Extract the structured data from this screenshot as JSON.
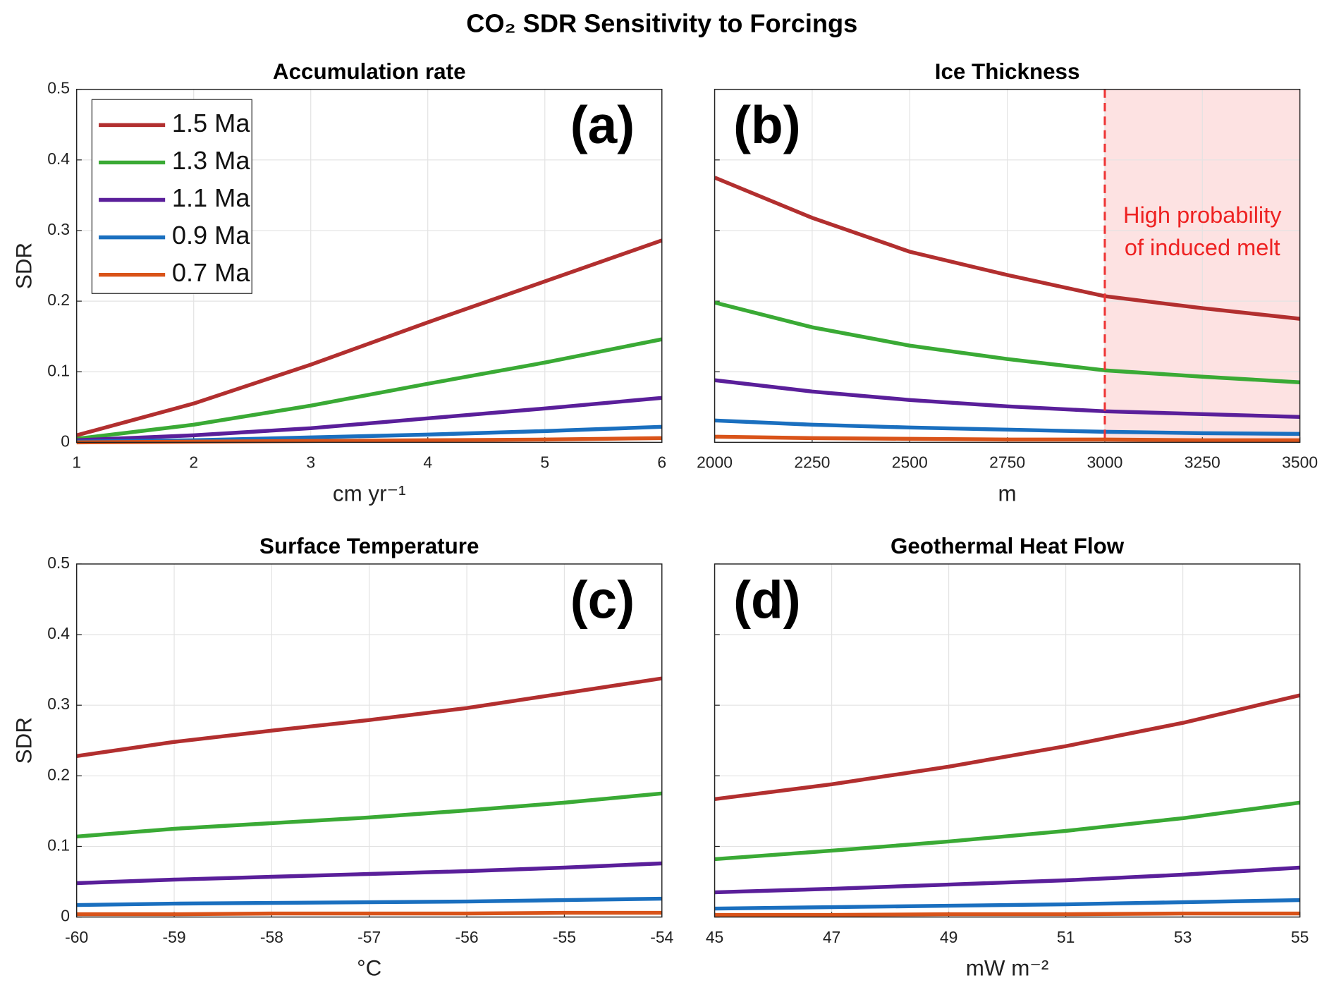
{
  "title": "CO₂ SDR Sensitivity to Forcings",
  "chart_data": [
    {
      "type": "line",
      "title": "Accumulation rate",
      "xlabel": "cm yr⁻¹",
      "ylabel": "SDR",
      "x": [
        1,
        2,
        3,
        4,
        5,
        6
      ],
      "xlim": [
        1,
        6
      ],
      "xticks": [
        1,
        2,
        3,
        4,
        5,
        6
      ],
      "ylim": [
        0,
        0.5
      ],
      "yticks": [
        0,
        0.1,
        0.2,
        0.3,
        0.4,
        0.5
      ],
      "show_ytick_labels": true,
      "grid": true,
      "panel_label": "(a)",
      "panel_label_corner": "upper right",
      "legend": "upper left",
      "series": [
        {
          "name": "1.5 Ma",
          "color": "#b22f2f",
          "values": [
            0.01,
            0.055,
            0.11,
            0.17,
            0.228,
            0.286
          ]
        },
        {
          "name": "1.3 Ma",
          "color": "#3aaa35",
          "values": [
            0.005,
            0.025,
            0.052,
            0.083,
            0.113,
            0.146
          ]
        },
        {
          "name": "1.1 Ma",
          "color": "#5a1f9a",
          "values": [
            0.003,
            0.01,
            0.02,
            0.034,
            0.048,
            0.063
          ]
        },
        {
          "name": "0.9 Ma",
          "color": "#1a6fbf",
          "values": [
            0.001,
            0.003,
            0.007,
            0.011,
            0.016,
            0.022
          ]
        },
        {
          "name": "0.7 Ma",
          "color": "#d95319",
          "values": [
            0,
            0.001,
            0.002,
            0.003,
            0.004,
            0.006
          ]
        }
      ]
    },
    {
      "type": "line",
      "title": "Ice Thickness",
      "xlabel": "m",
      "x": [
        2000,
        2250,
        2500,
        2750,
        3000,
        3250,
        3500
      ],
      "xlim": [
        2000,
        3500
      ],
      "xticks": [
        2000,
        2250,
        2500,
        2750,
        3000,
        3250,
        3500
      ],
      "ylim": [
        0,
        0.5
      ],
      "yticks": [
        0,
        0.1,
        0.2,
        0.3,
        0.4,
        0.5
      ],
      "show_ytick_labels": false,
      "grid": true,
      "panel_label": "(b)",
      "panel_label_corner": "upper left",
      "shade": {
        "x": [
          3000,
          3500
        ],
        "color": "#fde2e2"
      },
      "vline": {
        "x": 3000,
        "color": "#ee3333"
      },
      "annotation": {
        "lines": [
          "High probability",
          "of induced melt"
        ],
        "color": "#ee2222"
      },
      "series": [
        {
          "color": "#b22f2f",
          "values": [
            0.375,
            0.318,
            0.27,
            0.237,
            0.207,
            0.19,
            0.175
          ]
        },
        {
          "color": "#3aaa35",
          "values": [
            0.198,
            0.163,
            0.137,
            0.118,
            0.102,
            0.093,
            0.085
          ]
        },
        {
          "color": "#5a1f9a",
          "values": [
            0.088,
            0.072,
            0.06,
            0.051,
            0.044,
            0.04,
            0.036
          ]
        },
        {
          "color": "#1a6fbf",
          "values": [
            0.031,
            0.025,
            0.021,
            0.018,
            0.015,
            0.013,
            0.012
          ]
        },
        {
          "color": "#d95319",
          "values": [
            0.008,
            0.006,
            0.005,
            0.004,
            0.004,
            0.003,
            0.003
          ]
        }
      ]
    },
    {
      "type": "line",
      "title": "Surface Temperature",
      "xlabel": "°C",
      "ylabel": "SDR",
      "x": [
        -60,
        -59,
        -58,
        -57,
        -56,
        -55,
        -54
      ],
      "xlim": [
        -60,
        -54
      ],
      "xticks": [
        -60,
        -59,
        -58,
        -57,
        -56,
        -55,
        -54
      ],
      "ylim": [
        0,
        0.5
      ],
      "yticks": [
        0,
        0.1,
        0.2,
        0.3,
        0.4,
        0.5
      ],
      "show_ytick_labels": true,
      "grid": true,
      "panel_label": "(c)",
      "panel_label_corner": "upper right",
      "series": [
        {
          "color": "#b22f2f",
          "values": [
            0.228,
            0.248,
            0.264,
            0.279,
            0.296,
            0.317,
            0.338
          ]
        },
        {
          "color": "#3aaa35",
          "values": [
            0.114,
            0.125,
            0.133,
            0.141,
            0.151,
            0.162,
            0.175
          ]
        },
        {
          "color": "#5a1f9a",
          "values": [
            0.048,
            0.053,
            0.057,
            0.061,
            0.065,
            0.07,
            0.076
          ]
        },
        {
          "color": "#1a6fbf",
          "values": [
            0.017,
            0.019,
            0.02,
            0.021,
            0.022,
            0.024,
            0.026
          ]
        },
        {
          "color": "#d95319",
          "values": [
            0.004,
            0.004,
            0.005,
            0.005,
            0.005,
            0.006,
            0.006
          ]
        }
      ]
    },
    {
      "type": "line",
      "title": "Geothermal Heat Flow",
      "xlabel": "mW m⁻²",
      "x": [
        45,
        47,
        49,
        51,
        53,
        55
      ],
      "xlim": [
        45,
        55
      ],
      "xticks": [
        45,
        47,
        49,
        51,
        53,
        55
      ],
      "ylim": [
        0,
        0.5
      ],
      "yticks": [
        0,
        0.1,
        0.2,
        0.3,
        0.4,
        0.5
      ],
      "show_ytick_labels": false,
      "grid": true,
      "panel_label": "(d)",
      "panel_label_corner": "upper left",
      "series": [
        {
          "color": "#b22f2f",
          "values": [
            0.167,
            0.188,
            0.213,
            0.242,
            0.275,
            0.314
          ]
        },
        {
          "color": "#3aaa35",
          "values": [
            0.082,
            0.094,
            0.107,
            0.122,
            0.14,
            0.162
          ]
        },
        {
          "color": "#5a1f9a",
          "values": [
            0.035,
            0.04,
            0.046,
            0.052,
            0.06,
            0.07
          ]
        },
        {
          "color": "#1a6fbf",
          "values": [
            0.012,
            0.014,
            0.016,
            0.018,
            0.021,
            0.024
          ]
        },
        {
          "color": "#d95319",
          "values": [
            0.003,
            0.003,
            0.004,
            0.004,
            0.005,
            0.005
          ]
        }
      ]
    }
  ]
}
